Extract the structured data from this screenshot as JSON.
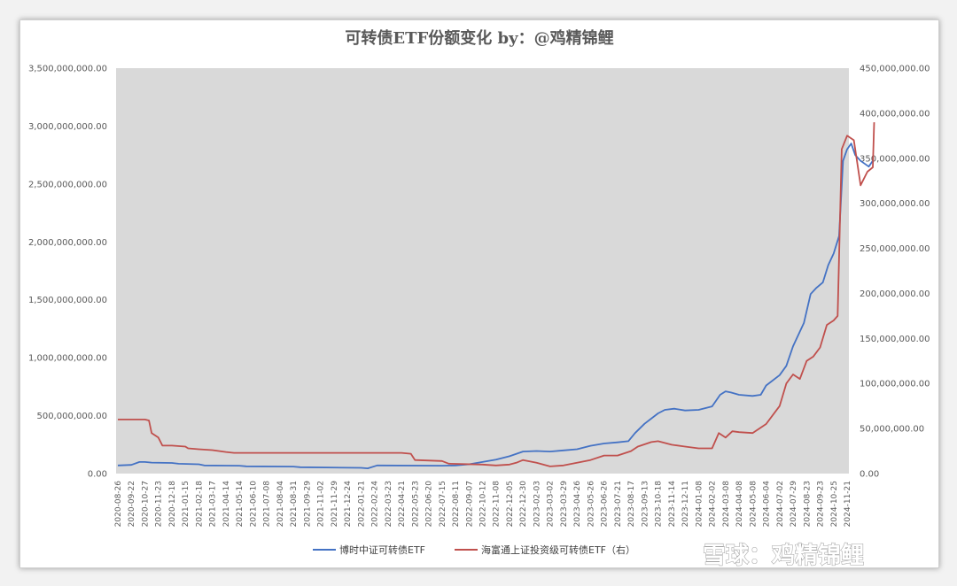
{
  "watermark": "雪球：鸡精锦鲤",
  "chart_data": {
    "type": "line",
    "title": "可转债ETF份额变化 by：@鸡精锦鲤",
    "plot_background": "#d9d9d9",
    "grid": false,
    "legend_position": "bottom",
    "y_left": {
      "lim": [
        0,
        3500000000
      ],
      "ticks": [
        0,
        500000000,
        1000000000,
        1500000000,
        2000000000,
        2500000000,
        3000000000,
        3500000000
      ],
      "tick_labels": [
        "0.00",
        "500,000,000.00",
        "1,000,000,000.00",
        "1,500,000,000.00",
        "2,000,000,000.00",
        "2,500,000,000.00",
        "3,000,000,000.00",
        "3,500,000,000.00"
      ]
    },
    "y_right": {
      "lim": [
        0,
        450000000
      ],
      "ticks": [
        0,
        50000000,
        100000000,
        150000000,
        200000000,
        250000000,
        300000000,
        350000000,
        400000000,
        450000000
      ],
      "tick_labels": [
        "0.00",
        "50,000,000.00",
        "100,000,000.00",
        "150,000,000.00",
        "200,000,000.00",
        "250,000,000.00",
        "300,000,000.00",
        "350,000,000.00",
        "400,000,000.00",
        "450,000,000.00"
      ]
    },
    "x_tick_labels": [
      "2020-08-26",
      "2020-09-22",
      "2020-10-27",
      "2020-11-23",
      "2020-12-18",
      "2021-01-15",
      "2021-02-18",
      "2021-03-17",
      "2021-04-14",
      "2021-05-14",
      "2021-06-10",
      "2021-07-08",
      "2021-08-04",
      "2021-08-31",
      "2021-09-29",
      "2021-11-02",
      "2021-11-29",
      "2021-12-24",
      "2022-01-21",
      "2022-02-24",
      "2022-03-23",
      "2022-04-21",
      "2022-05-23",
      "2022-06-20",
      "2022-07-15",
      "2022-08-11",
      "2022-09-07",
      "2022-10-12",
      "2022-11-08",
      "2022-12-05",
      "2022-12-30",
      "2023-02-03",
      "2023-03-02",
      "2023-03-29",
      "2023-04-26",
      "2023-05-26",
      "2023-06-26",
      "2023-07-21",
      "2023-08-17",
      "2023-09-13",
      "2023-10-18",
      "2023-11-14",
      "2023-12-11",
      "2024-01-08",
      "2024-02-02",
      "2024-03-08",
      "2024-04-08",
      "2024-05-08",
      "2024-06-04",
      "2024-07-02",
      "2024-07-29",
      "2024-08-23",
      "2024-09-23",
      "2024-10-25",
      "2024-11-21"
    ],
    "series": [
      {
        "name": "博时中证可转债ETF",
        "axis": "left",
        "color": "#4472c4",
        "points": [
          [
            0,
            70000000
          ],
          [
            1,
            75000000
          ],
          [
            1.6,
            100000000
          ],
          [
            2,
            100000000
          ],
          [
            2.5,
            95000000
          ],
          [
            4,
            92000000
          ],
          [
            4.5,
            85000000
          ],
          [
            6,
            80000000
          ],
          [
            6.4,
            70000000
          ],
          [
            9,
            68000000
          ],
          [
            9.5,
            63000000
          ],
          [
            13,
            60000000
          ],
          [
            13.5,
            55000000
          ],
          [
            18,
            50000000
          ],
          [
            18.5,
            45000000
          ],
          [
            19.2,
            70000000
          ],
          [
            24,
            68000000
          ],
          [
            25,
            70000000
          ],
          [
            26,
            80000000
          ],
          [
            27,
            100000000
          ],
          [
            28,
            120000000
          ],
          [
            29,
            150000000
          ],
          [
            30,
            190000000
          ],
          [
            31,
            195000000
          ],
          [
            32,
            190000000
          ],
          [
            33,
            200000000
          ],
          [
            34,
            210000000
          ],
          [
            35,
            240000000
          ],
          [
            36,
            260000000
          ],
          [
            37,
            270000000
          ],
          [
            37.8,
            280000000
          ],
          [
            38.3,
            350000000
          ],
          [
            39,
            430000000
          ],
          [
            40,
            520000000
          ],
          [
            40.5,
            550000000
          ],
          [
            41.2,
            560000000
          ],
          [
            42,
            545000000
          ],
          [
            43,
            550000000
          ],
          [
            44,
            580000000
          ],
          [
            44.6,
            680000000
          ],
          [
            45,
            710000000
          ],
          [
            45.4,
            700000000
          ],
          [
            46,
            680000000
          ],
          [
            47,
            670000000
          ],
          [
            47.6,
            680000000
          ],
          [
            48,
            760000000
          ],
          [
            49,
            850000000
          ],
          [
            49.5,
            930000000
          ],
          [
            50,
            1100000000
          ],
          [
            50.8,
            1300000000
          ],
          [
            51.3,
            1550000000
          ],
          [
            51.7,
            1600000000
          ],
          [
            52.2,
            1650000000
          ],
          [
            52.6,
            1800000000
          ],
          [
            53,
            1900000000
          ],
          [
            53.4,
            2050000000
          ],
          [
            53.7,
            2700000000
          ],
          [
            54,
            2800000000
          ],
          [
            54.3,
            2850000000
          ],
          [
            54.6,
            2750000000
          ],
          [
            55,
            2700000000
          ],
          [
            55.6,
            2650000000
          ],
          [
            55.9,
            2700000000
          ]
        ]
      },
      {
        "name": "海富通上证投资级可转债ETF（右）",
        "axis": "right",
        "color": "#c0504d",
        "points": [
          [
            0,
            60000000
          ],
          [
            2,
            60000000
          ],
          [
            2.3,
            59000000
          ],
          [
            2.5,
            45000000
          ],
          [
            3,
            40000000
          ],
          [
            3.3,
            31000000
          ],
          [
            4,
            31000000
          ],
          [
            5,
            30000000
          ],
          [
            5.2,
            28000000
          ],
          [
            6,
            27000000
          ],
          [
            7,
            26000000
          ],
          [
            8,
            24000000
          ],
          [
            8.6,
            23000000
          ],
          [
            21,
            23000000
          ],
          [
            21.7,
            22000000
          ],
          [
            22,
            15000000
          ],
          [
            24,
            14000000
          ],
          [
            24.5,
            11000000
          ],
          [
            27,
            10000000
          ],
          [
            28,
            9000000
          ],
          [
            29,
            10000000
          ],
          [
            29.5,
            12000000
          ],
          [
            30,
            15000000
          ],
          [
            31,
            12000000
          ],
          [
            32,
            8000000
          ],
          [
            33,
            9000000
          ],
          [
            34,
            12000000
          ],
          [
            35,
            15000000
          ],
          [
            36,
            20000000
          ],
          [
            37,
            20000000
          ],
          [
            38,
            25000000
          ],
          [
            38.5,
            30000000
          ],
          [
            39.5,
            35000000
          ],
          [
            40,
            36000000
          ],
          [
            41,
            32000000
          ],
          [
            42,
            30000000
          ],
          [
            43,
            28000000
          ],
          [
            44,
            28000000
          ],
          [
            44.5,
            45000000
          ],
          [
            45,
            40000000
          ],
          [
            45.5,
            47000000
          ],
          [
            46,
            46000000
          ],
          [
            47,
            45000000
          ],
          [
            48,
            55000000
          ],
          [
            48.5,
            65000000
          ],
          [
            49,
            75000000
          ],
          [
            49.5,
            100000000
          ],
          [
            50,
            110000000
          ],
          [
            50.5,
            105000000
          ],
          [
            51,
            125000000
          ],
          [
            51.5,
            130000000
          ],
          [
            52,
            140000000
          ],
          [
            52.5,
            165000000
          ],
          [
            53,
            170000000
          ],
          [
            53.3,
            175000000
          ],
          [
            53.6,
            360000000
          ],
          [
            54,
            375000000
          ],
          [
            54.5,
            370000000
          ],
          [
            55,
            320000000
          ],
          [
            55.5,
            335000000
          ],
          [
            55.9,
            340000000
          ],
          [
            56,
            390000000
          ]
        ]
      }
    ]
  }
}
